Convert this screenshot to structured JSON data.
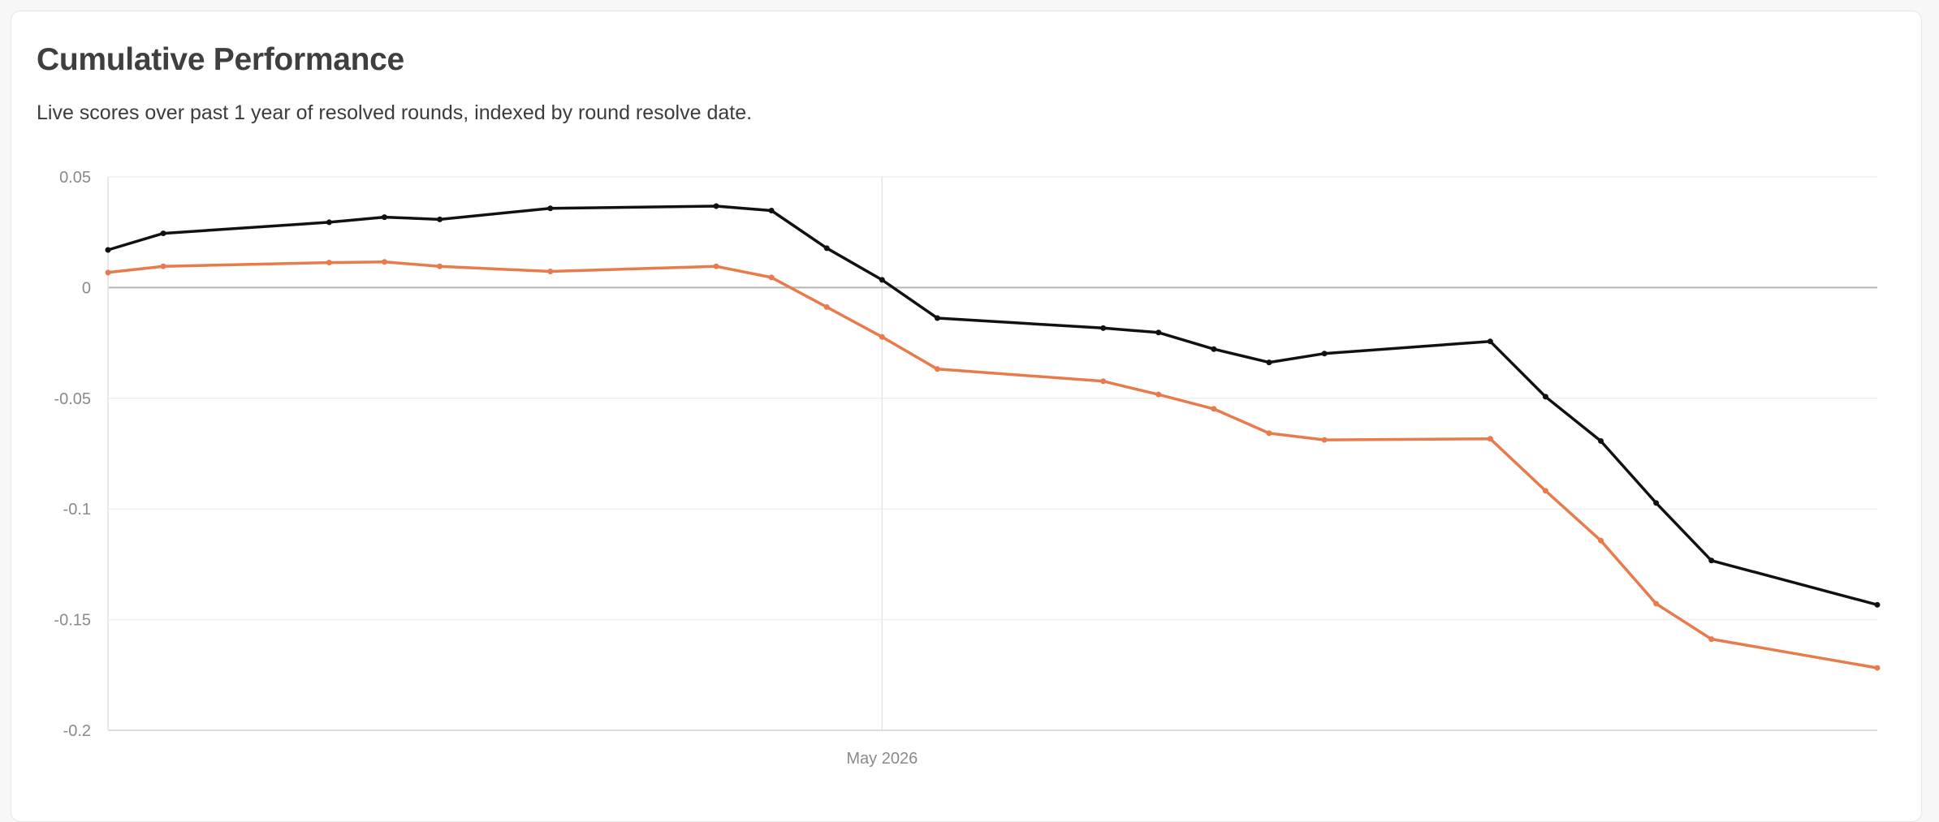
{
  "header": {
    "title": "Cumulative Performance",
    "subtitle": "Live scores over past 1 year of resolved rounds, indexed by round resolve date."
  },
  "chart_data": {
    "type": "line",
    "title": "Cumulative Performance",
    "subtitle": "Live scores over past 1 year of resolved rounds, indexed by round resolve date.",
    "xlabel": "",
    "ylabel": "",
    "ylim": [
      -0.2,
      0.05
    ],
    "yticks": [
      0.05,
      0,
      -0.05,
      -0.1,
      -0.15,
      -0.2
    ],
    "ytick_labels": [
      "0.05",
      "0",
      "-0.05",
      "-0.1",
      "-0.15",
      "-0.2"
    ],
    "xticks": [
      {
        "index": 14,
        "label": "May 2026"
      }
    ],
    "grid": true,
    "legend": "none",
    "x": [
      0,
      1,
      4,
      5,
      6,
      8,
      11,
      12,
      13,
      14,
      15,
      18,
      19,
      20,
      21,
      22,
      25,
      26,
      27,
      28,
      29,
      32
    ],
    "series": [
      {
        "color": "#111111",
        "values": [
          0.017,
          0.0245,
          0.0295,
          0.0318,
          0.0308,
          0.0358,
          0.0368,
          0.0348,
          0.0178,
          0.0035,
          -0.0138,
          -0.0183,
          -0.0203,
          -0.0278,
          -0.0338,
          -0.0298,
          -0.0243,
          -0.0493,
          -0.0693,
          -0.0973,
          -0.1233,
          -0.1433
        ]
      },
      {
        "color": "#e87a4c",
        "values": [
          0.0068,
          0.0096,
          0.0113,
          0.0116,
          0.0096,
          0.0073,
          0.0096,
          0.0046,
          -0.0088,
          -0.0223,
          -0.0368,
          -0.0423,
          -0.0483,
          -0.0548,
          -0.0658,
          -0.0688,
          -0.0683,
          -0.0918,
          -0.1143,
          -0.1428,
          -0.1588,
          -0.1718
        ]
      }
    ]
  }
}
